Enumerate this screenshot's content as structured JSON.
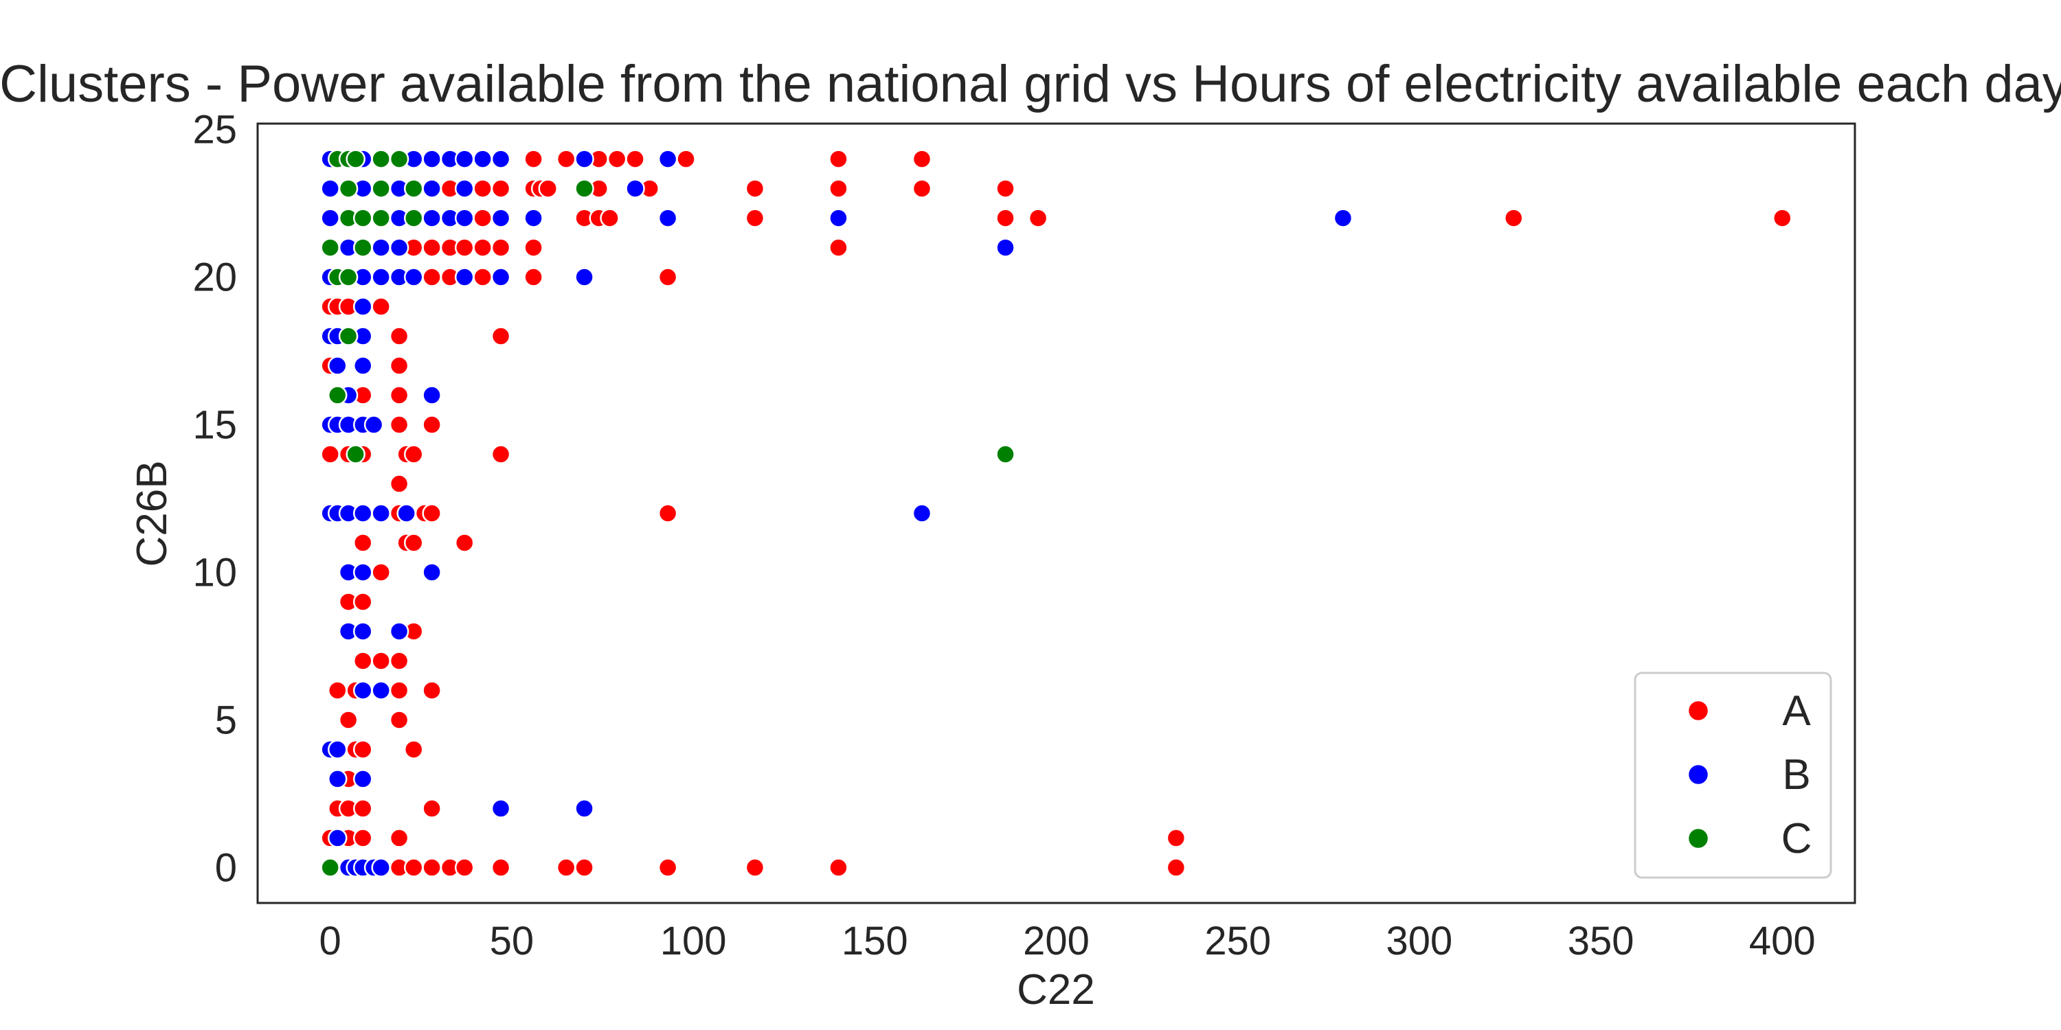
{
  "chart_data": {
    "type": "scatter",
    "title": "Clusters - Power available from the national grid  vs Hours of electricity available each day",
    "xlabel": "C22",
    "ylabel": "C26B",
    "xlim": [
      -20,
      420
    ],
    "ylim": [
      -1.2,
      25.2
    ],
    "x_ticks": [
      0,
      50,
      100,
      150,
      200,
      250,
      300,
      350,
      400
    ],
    "y_ticks": [
      0,
      5,
      10,
      15,
      20,
      25
    ],
    "grid": false,
    "legend_position": "bottom-right",
    "series": [
      {
        "name": "A",
        "color": "#ff0000",
        "points": [
          [
            37,
            24
          ],
          [
            56,
            24
          ],
          [
            65,
            24
          ],
          [
            70,
            24
          ],
          [
            74,
            24
          ],
          [
            79,
            24
          ],
          [
            84,
            24
          ],
          [
            98,
            24
          ],
          [
            140,
            24
          ],
          [
            163,
            24
          ],
          [
            33,
            23
          ],
          [
            37,
            23
          ],
          [
            42,
            23
          ],
          [
            47,
            23
          ],
          [
            56,
            23
          ],
          [
            58,
            23
          ],
          [
            60,
            23
          ],
          [
            74,
            23
          ],
          [
            88,
            23
          ],
          [
            117,
            23
          ],
          [
            140,
            23
          ],
          [
            163,
            23
          ],
          [
            186,
            23
          ],
          [
            23,
            22
          ],
          [
            28,
            22
          ],
          [
            33,
            22
          ],
          [
            37,
            22
          ],
          [
            42,
            22
          ],
          [
            70,
            22
          ],
          [
            74,
            22
          ],
          [
            77,
            22
          ],
          [
            117,
            22
          ],
          [
            186,
            22
          ],
          [
            195,
            22
          ],
          [
            326,
            22
          ],
          [
            400,
            22
          ],
          [
            23,
            21
          ],
          [
            28,
            21
          ],
          [
            33,
            21
          ],
          [
            37,
            21
          ],
          [
            42,
            21
          ],
          [
            47,
            21
          ],
          [
            56,
            21
          ],
          [
            140,
            21
          ],
          [
            28,
            20
          ],
          [
            33,
            20
          ],
          [
            37,
            20
          ],
          [
            42,
            20
          ],
          [
            56,
            20
          ],
          [
            93,
            20
          ],
          [
            0,
            19
          ],
          [
            2,
            19
          ],
          [
            5,
            19
          ],
          [
            9,
            19
          ],
          [
            14,
            19
          ],
          [
            19,
            18
          ],
          [
            47,
            18
          ],
          [
            0,
            17
          ],
          [
            9,
            17
          ],
          [
            19,
            17
          ],
          [
            9,
            16
          ],
          [
            19,
            16
          ],
          [
            19,
            15
          ],
          [
            28,
            15
          ],
          [
            0,
            14
          ],
          [
            5,
            14
          ],
          [
            9,
            14
          ],
          [
            21,
            14
          ],
          [
            23,
            14
          ],
          [
            47,
            14
          ],
          [
            19,
            13
          ],
          [
            19,
            12
          ],
          [
            26,
            12
          ],
          [
            28,
            12
          ],
          [
            93,
            12
          ],
          [
            9,
            11
          ],
          [
            21,
            11
          ],
          [
            23,
            11
          ],
          [
            37,
            11
          ],
          [
            14,
            10
          ],
          [
            28,
            10
          ],
          [
            5,
            9
          ],
          [
            9,
            9
          ],
          [
            23,
            8
          ],
          [
            9,
            7
          ],
          [
            14,
            7
          ],
          [
            19,
            7
          ],
          [
            2,
            6
          ],
          [
            7,
            6
          ],
          [
            19,
            6
          ],
          [
            28,
            6
          ],
          [
            5,
            5
          ],
          [
            19,
            5
          ],
          [
            7,
            4
          ],
          [
            9,
            4
          ],
          [
            23,
            4
          ],
          [
            5,
            3
          ],
          [
            2,
            2
          ],
          [
            5,
            2
          ],
          [
            9,
            2
          ],
          [
            28,
            2
          ],
          [
            0,
            1
          ],
          [
            5,
            1
          ],
          [
            9,
            1
          ],
          [
            19,
            1
          ],
          [
            233,
            1
          ],
          [
            19,
            0
          ],
          [
            23,
            0
          ],
          [
            28,
            0
          ],
          [
            33,
            0
          ],
          [
            37,
            0
          ],
          [
            47,
            0
          ],
          [
            65,
            0
          ],
          [
            70,
            0
          ],
          [
            93,
            0
          ],
          [
            117,
            0
          ],
          [
            140,
            0
          ],
          [
            233,
            0
          ]
        ]
      },
      {
        "name": "B",
        "color": "#0000ff",
        "points": [
          [
            0,
            24
          ],
          [
            9,
            24
          ],
          [
            14,
            24
          ],
          [
            19,
            24
          ],
          [
            23,
            24
          ],
          [
            28,
            24
          ],
          [
            33,
            24
          ],
          [
            37,
            24
          ],
          [
            42,
            24
          ],
          [
            47,
            24
          ],
          [
            70,
            24
          ],
          [
            93,
            24
          ],
          [
            0,
            23
          ],
          [
            5,
            23
          ],
          [
            9,
            23
          ],
          [
            14,
            23
          ],
          [
            19,
            23
          ],
          [
            23,
            23
          ],
          [
            28,
            23
          ],
          [
            37,
            23
          ],
          [
            84,
            23
          ],
          [
            0,
            22
          ],
          [
            5,
            22
          ],
          [
            9,
            22
          ],
          [
            14,
            22
          ],
          [
            19,
            22
          ],
          [
            28,
            22
          ],
          [
            33,
            22
          ],
          [
            37,
            22
          ],
          [
            47,
            22
          ],
          [
            56,
            22
          ],
          [
            93,
            22
          ],
          [
            140,
            22
          ],
          [
            279,
            22
          ],
          [
            5,
            21
          ],
          [
            9,
            21
          ],
          [
            14,
            21
          ],
          [
            19,
            21
          ],
          [
            186,
            21
          ],
          [
            0,
            20
          ],
          [
            9,
            20
          ],
          [
            14,
            20
          ],
          [
            19,
            20
          ],
          [
            23,
            20
          ],
          [
            37,
            20
          ],
          [
            47,
            20
          ],
          [
            70,
            20
          ],
          [
            9,
            19
          ],
          [
            0,
            18
          ],
          [
            2,
            18
          ],
          [
            9,
            18
          ],
          [
            2,
            17
          ],
          [
            9,
            17
          ],
          [
            5,
            16
          ],
          [
            28,
            16
          ],
          [
            0,
            15
          ],
          [
            2,
            15
          ],
          [
            5,
            15
          ],
          [
            9,
            15
          ],
          [
            12,
            15
          ],
          [
            0,
            12
          ],
          [
            2,
            12
          ],
          [
            5,
            12
          ],
          [
            9,
            12
          ],
          [
            14,
            12
          ],
          [
            21,
            12
          ],
          [
            163,
            12
          ],
          [
            5,
            10
          ],
          [
            9,
            10
          ],
          [
            28,
            10
          ],
          [
            5,
            8
          ],
          [
            9,
            8
          ],
          [
            19,
            8
          ],
          [
            9,
            6
          ],
          [
            14,
            6
          ],
          [
            0,
            4
          ],
          [
            2,
            4
          ],
          [
            2,
            3
          ],
          [
            9,
            3
          ],
          [
            47,
            2
          ],
          [
            70,
            2
          ],
          [
            2,
            1
          ],
          [
            5,
            0
          ],
          [
            7,
            0
          ],
          [
            9,
            0
          ],
          [
            12,
            0
          ],
          [
            14,
            0
          ]
        ]
      },
      {
        "name": "C",
        "color": "#008000",
        "points": [
          [
            2,
            24
          ],
          [
            5,
            24
          ],
          [
            7,
            24
          ],
          [
            14,
            24
          ],
          [
            19,
            24
          ],
          [
            5,
            23
          ],
          [
            14,
            23
          ],
          [
            23,
            23
          ],
          [
            70,
            23
          ],
          [
            5,
            22
          ],
          [
            9,
            22
          ],
          [
            14,
            22
          ],
          [
            23,
            22
          ],
          [
            0,
            21
          ],
          [
            9,
            21
          ],
          [
            2,
            20
          ],
          [
            5,
            20
          ],
          [
            5,
            18
          ],
          [
            2,
            16
          ],
          [
            7,
            14
          ],
          [
            186,
            14
          ],
          [
            0,
            0
          ]
        ]
      }
    ]
  }
}
